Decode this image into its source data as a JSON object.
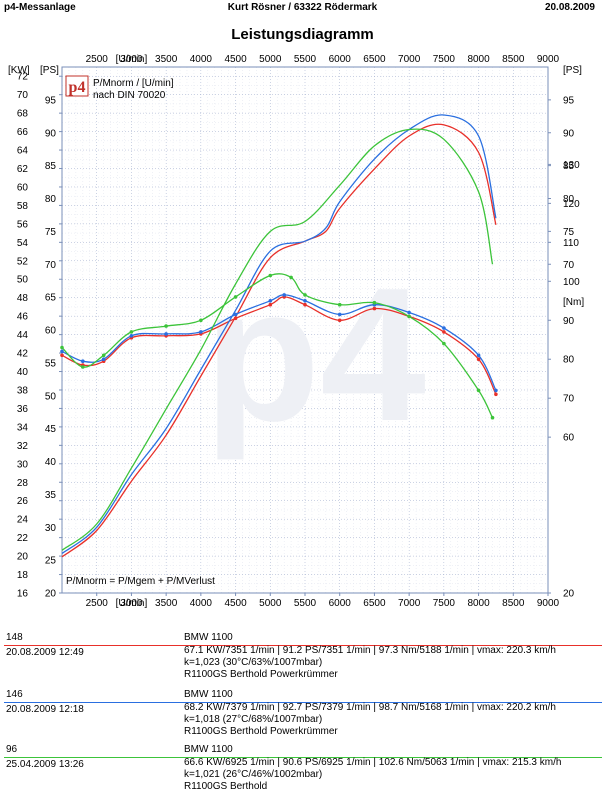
{
  "header": {
    "left": "p4-Messanlage",
    "center": "Kurt Rösner  /  63322 Rödermark",
    "right": "20.08.2009"
  },
  "title": "Leistungsdiagramm",
  "chart_data": {
    "type": "line",
    "title": "Leistungsdiagramm",
    "x_unit_label": "[U/min]",
    "x_range": [
      2000,
      9000
    ],
    "x_ticks": [
      2500,
      3000,
      3500,
      4000,
      4500,
      5000,
      5500,
      6000,
      6500,
      7000,
      7500,
      8000,
      8500,
      9000
    ],
    "left_axis_kw": {
      "unit": "[KW]",
      "range": [
        16,
        73
      ],
      "ticks": [
        16,
        18,
        20,
        22,
        24,
        26,
        28,
        30,
        32,
        34,
        36,
        38,
        40,
        42,
        44,
        46,
        48,
        50,
        52,
        54,
        56,
        58,
        60,
        62,
        64,
        66,
        68,
        70,
        72
      ]
    },
    "left_axis_ps": {
      "unit": "[PS]",
      "range": [
        20,
        100
      ],
      "ticks": [
        20,
        25,
        30,
        35,
        40,
        45,
        50,
        55,
        60,
        65,
        70,
        75,
        80,
        85,
        90,
        95
      ]
    },
    "right_axis_ps": {
      "unit": "[PS]",
      "ticks": [
        70,
        75,
        80,
        85,
        90,
        95
      ]
    },
    "right_axis_nm": {
      "unit": "[Nm]",
      "range": [
        20,
        155
      ],
      "ticks": [
        20,
        60,
        70,
        80,
        90,
        100,
        110,
        120,
        130
      ]
    },
    "grid": true,
    "legend_text": [
      "P/Mnorm / [U/min]",
      "nach DIN 70020"
    ],
    "logo_text": "p4",
    "formula": "P/Mnorm = P/Mgem + P/MVerlust",
    "series": [
      {
        "name": "148",
        "color": "#e8302a",
        "power_ps": [
          [
            2000,
            25.5
          ],
          [
            2500,
            29.5
          ],
          [
            3000,
            37
          ],
          [
            3500,
            44
          ],
          [
            4000,
            53
          ],
          [
            4500,
            62
          ],
          [
            5000,
            71
          ],
          [
            5500,
            73.5
          ],
          [
            5800,
            75
          ],
          [
            6000,
            78.5
          ],
          [
            6500,
            84.5
          ],
          [
            7000,
            89.5
          ],
          [
            7500,
            91.2
          ],
          [
            8000,
            87
          ],
          [
            8250,
            76
          ]
        ],
        "torque_nm": [
          [
            2000,
            81
          ],
          [
            2300,
            78.5
          ],
          [
            2600,
            79.5
          ],
          [
            3000,
            85.5
          ],
          [
            3500,
            86
          ],
          [
            4000,
            86.5
          ],
          [
            4500,
            90.5
          ],
          [
            5000,
            94
          ],
          [
            5200,
            96
          ],
          [
            5500,
            94
          ],
          [
            6000,
            90
          ],
          [
            6500,
            93
          ],
          [
            7000,
            91
          ],
          [
            7500,
            87
          ],
          [
            8000,
            80
          ],
          [
            8250,
            71
          ]
        ]
      },
      {
        "name": "146",
        "color": "#2a6fe0",
        "power_ps": [
          [
            2000,
            26
          ],
          [
            2500,
            30
          ],
          [
            3000,
            38
          ],
          [
            3500,
            45
          ],
          [
            4000,
            54
          ],
          [
            4500,
            63
          ],
          [
            5000,
            72
          ],
          [
            5500,
            73.5
          ],
          [
            5800,
            75.5
          ],
          [
            6000,
            79.5
          ],
          [
            6500,
            86
          ],
          [
            7000,
            90.5
          ],
          [
            7500,
            92.7
          ],
          [
            8000,
            89.5
          ],
          [
            8250,
            77
          ]
        ],
        "torque_nm": [
          [
            2000,
            82
          ],
          [
            2300,
            79.5
          ],
          [
            2600,
            80
          ],
          [
            3000,
            86
          ],
          [
            3500,
            86.5
          ],
          [
            4000,
            87
          ],
          [
            4500,
            91.5
          ],
          [
            5000,
            95
          ],
          [
            5200,
            96.5
          ],
          [
            5500,
            95
          ],
          [
            6000,
            91.5
          ],
          [
            6500,
            94
          ],
          [
            7000,
            92
          ],
          [
            7500,
            88
          ],
          [
            8000,
            81
          ],
          [
            8250,
            72
          ]
        ]
      },
      {
        "name": "96",
        "color": "#3cc43a",
        "power_ps": [
          [
            2000,
            26.5
          ],
          [
            2500,
            30.5
          ],
          [
            3000,
            39
          ],
          [
            3500,
            48
          ],
          [
            4000,
            57
          ],
          [
            4500,
            67
          ],
          [
            5000,
            75
          ],
          [
            5500,
            76.5
          ],
          [
            6000,
            82
          ],
          [
            6500,
            88
          ],
          [
            7000,
            90.5
          ],
          [
            7500,
            89
          ],
          [
            8000,
            81
          ],
          [
            8200,
            70
          ]
        ],
        "torque_nm": [
          [
            2000,
            83
          ],
          [
            2300,
            78
          ],
          [
            2600,
            81
          ],
          [
            3000,
            87
          ],
          [
            3500,
            88.5
          ],
          [
            4000,
            90
          ],
          [
            4500,
            96
          ],
          [
            5000,
            101.5
          ],
          [
            5300,
            101
          ],
          [
            5500,
            96.5
          ],
          [
            6000,
            94
          ],
          [
            6500,
            94.5
          ],
          [
            7000,
            91
          ],
          [
            7500,
            84
          ],
          [
            8000,
            72
          ],
          [
            8200,
            65
          ]
        ]
      }
    ]
  },
  "entries": [
    {
      "id": "148",
      "color": "#e8302a",
      "date": "20.08.2009  12:49",
      "model": "BMW 1100",
      "values": "67.1 KW/7351 1/min  |  91.2 PS/7351 1/min  |  97.3 Nm/5188 1/min | vmax: 220.3 km/h",
      "k": "k=1,023 (30°C/63%/1007mbar)",
      "note": "R1100GS Berthold Powerkrümmer"
    },
    {
      "id": "146",
      "color": "#2a6fe0",
      "date": "20.08.2009  12:18",
      "model": "BMW 1100",
      "values": "68.2 KW/7379 1/min  |  92.7 PS/7379 1/min  |  98.7 Nm/5168 1/min | vmax: 220.2 km/h",
      "k": "k=1,018 (27°C/68%/1007mbar)",
      "note": "R1100GS Berthold Powerkrümmer"
    },
    {
      "id": "96",
      "color": "#3cc43a",
      "date": "25.04.2009  13:26",
      "model": "BMW 1100",
      "values": "66.6 KW/6925 1/min  |  90.6 PS/6925 1/min  |  102.6 Nm/5063 1/min | vmax: 215.3 km/h",
      "k": "k=1,021 (26°C/46%/1002mbar)",
      "note": "R1100GS Berthold"
    }
  ]
}
